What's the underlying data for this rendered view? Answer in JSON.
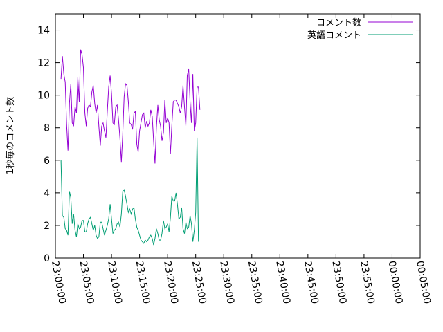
{
  "chart_data": {
    "type": "line",
    "ylabel": "1秒毎のコメント数",
    "ylim": [
      0,
      15
    ],
    "yticks": [
      0,
      2,
      4,
      6,
      8,
      10,
      12,
      14
    ],
    "xlim": [
      "23:00:00",
      "00:05:00"
    ],
    "xticks": [
      "23:00:00",
      "23:05:00",
      "23:10:00",
      "23:15:00",
      "23:20:00",
      "23:25:00",
      "23:30:00",
      "23:35:00",
      "23:40:00",
      "23:45:00",
      "23:50:00",
      "23:55:00",
      "00:00:00",
      "00:05:00"
    ],
    "legend_position": "top-right",
    "grid": false,
    "series": [
      {
        "name": "コメント数",
        "color": "#9400d3",
        "points": [
          [
            "23:01:00",
            11.0
          ],
          [
            "23:01:15",
            12.4
          ],
          [
            "23:01:30",
            11.3
          ],
          [
            "23:01:45",
            10.8
          ],
          [
            "23:02:00",
            8.2
          ],
          [
            "23:02:15",
            6.6
          ],
          [
            "23:02:30",
            9.5
          ],
          [
            "23:02:45",
            10.7
          ],
          [
            "23:03:00",
            8.3
          ],
          [
            "23:03:15",
            8.1
          ],
          [
            "23:03:30",
            9.3
          ],
          [
            "23:03:45",
            8.9
          ],
          [
            "23:04:00",
            11.1
          ],
          [
            "23:04:15",
            9.6
          ],
          [
            "23:04:30",
            12.8
          ],
          [
            "23:04:45",
            12.5
          ],
          [
            "23:05:00",
            11.7
          ],
          [
            "23:05:15",
            8.9
          ],
          [
            "23:05:30",
            8.1
          ],
          [
            "23:05:45",
            9.2
          ],
          [
            "23:06:00",
            9.4
          ],
          [
            "23:06:15",
            9.3
          ],
          [
            "23:06:30",
            10.2
          ],
          [
            "23:06:45",
            10.6
          ],
          [
            "23:07:00",
            9.5
          ],
          [
            "23:07:15",
            8.9
          ],
          [
            "23:07:30",
            9.4
          ],
          [
            "23:07:45",
            8.1
          ],
          [
            "23:08:00",
            6.9
          ],
          [
            "23:08:15",
            8.1
          ],
          [
            "23:08:30",
            8.3
          ],
          [
            "23:08:45",
            7.8
          ],
          [
            "23:09:00",
            7.4
          ],
          [
            "23:09:15",
            9.0
          ],
          [
            "23:09:30",
            10.5
          ],
          [
            "23:09:45",
            11.2
          ],
          [
            "23:10:00",
            10.1
          ],
          [
            "23:10:15",
            8.3
          ],
          [
            "23:10:30",
            8.2
          ],
          [
            "23:10:45",
            9.3
          ],
          [
            "23:11:00",
            9.4
          ],
          [
            "23:11:15",
            8.5
          ],
          [
            "23:11:30",
            7.4
          ],
          [
            "23:11:45",
            5.9
          ],
          [
            "23:12:00",
            7.6
          ],
          [
            "23:12:15",
            9.9
          ],
          [
            "23:12:30",
            10.7
          ],
          [
            "23:12:45",
            10.6
          ],
          [
            "23:13:00",
            9.6
          ],
          [
            "23:13:15",
            8.3
          ],
          [
            "23:13:30",
            8.2
          ],
          [
            "23:13:45",
            7.9
          ],
          [
            "23:14:00",
            8.9
          ],
          [
            "23:14:15",
            9.0
          ],
          [
            "23:14:30",
            7.0
          ],
          [
            "23:14:45",
            6.5
          ],
          [
            "23:15:00",
            7.8
          ],
          [
            "23:15:15",
            8.3
          ],
          [
            "23:15:30",
            8.8
          ],
          [
            "23:15:45",
            8.9
          ],
          [
            "23:16:00",
            8.0
          ],
          [
            "23:16:15",
            8.4
          ],
          [
            "23:16:30",
            8.1
          ],
          [
            "23:16:45",
            8.3
          ],
          [
            "23:17:00",
            9.1
          ],
          [
            "23:17:15",
            8.7
          ],
          [
            "23:17:30",
            7.2
          ],
          [
            "23:17:45",
            5.8
          ],
          [
            "23:18:00",
            8.0
          ],
          [
            "23:18:15",
            9.4
          ],
          [
            "23:18:30",
            8.5
          ],
          [
            "23:18:45",
            8.1
          ],
          [
            "23:19:00",
            7.2
          ],
          [
            "23:19:15",
            7.7
          ],
          [
            "23:19:30",
            9.7
          ],
          [
            "23:19:45",
            8.3
          ],
          [
            "23:20:00",
            8.6
          ],
          [
            "23:20:15",
            8.3
          ],
          [
            "23:20:30",
            6.4
          ],
          [
            "23:20:45",
            8.1
          ],
          [
            "23:21:00",
            9.6
          ],
          [
            "23:21:15",
            9.7
          ],
          [
            "23:21:30",
            9.7
          ],
          [
            "23:21:45",
            9.5
          ],
          [
            "23:22:00",
            9.3
          ],
          [
            "23:22:15",
            8.9
          ],
          [
            "23:22:30",
            9.3
          ],
          [
            "23:22:45",
            10.6
          ],
          [
            "23:23:00",
            9.3
          ],
          [
            "23:23:15",
            8.1
          ],
          [
            "23:23:30",
            11.2
          ],
          [
            "23:23:45",
            11.6
          ],
          [
            "23:24:00",
            9.6
          ],
          [
            "23:24:15",
            8.3
          ],
          [
            "23:24:30",
            11.3
          ],
          [
            "23:24:45",
            7.8
          ],
          [
            "23:25:00",
            8.3
          ],
          [
            "23:25:15",
            10.5
          ],
          [
            "23:25:30",
            10.5
          ],
          [
            "23:25:45",
            9.1
          ]
        ]
      },
      {
        "name": "英語コメント",
        "color": "#009e73",
        "points": [
          [
            "23:01:00",
            6.0
          ],
          [
            "23:01:15",
            2.6
          ],
          [
            "23:01:30",
            2.5
          ],
          [
            "23:01:45",
            1.8
          ],
          [
            "23:02:00",
            1.7
          ],
          [
            "23:02:15",
            1.4
          ],
          [
            "23:02:30",
            4.1
          ],
          [
            "23:02:45",
            3.7
          ],
          [
            "23:03:00",
            2.1
          ],
          [
            "23:03:15",
            2.7
          ],
          [
            "23:03:30",
            1.7
          ],
          [
            "23:03:45",
            1.3
          ],
          [
            "23:04:00",
            2.1
          ],
          [
            "23:04:15",
            1.8
          ],
          [
            "23:04:30",
            1.9
          ],
          [
            "23:04:45",
            2.3
          ],
          [
            "23:05:00",
            2.3
          ],
          [
            "23:05:15",
            1.6
          ],
          [
            "23:05:30",
            1.6
          ],
          [
            "23:05:45",
            2.1
          ],
          [
            "23:06:00",
            2.4
          ],
          [
            "23:06:15",
            2.5
          ],
          [
            "23:06:30",
            2.1
          ],
          [
            "23:06:45",
            1.7
          ],
          [
            "23:07:00",
            2.0
          ],
          [
            "23:07:15",
            1.4
          ],
          [
            "23:07:30",
            1.2
          ],
          [
            "23:07:45",
            1.3
          ],
          [
            "23:08:00",
            2.2
          ],
          [
            "23:08:15",
            2.2
          ],
          [
            "23:08:30",
            1.8
          ],
          [
            "23:08:45",
            1.4
          ],
          [
            "23:09:00",
            1.7
          ],
          [
            "23:09:15",
            2.0
          ],
          [
            "23:09:30",
            2.4
          ],
          [
            "23:09:45",
            3.3
          ],
          [
            "23:10:00",
            2.4
          ],
          [
            "23:10:15",
            1.5
          ],
          [
            "23:10:30",
            1.7
          ],
          [
            "23:10:45",
            1.8
          ],
          [
            "23:11:00",
            2.1
          ],
          [
            "23:11:15",
            2.2
          ],
          [
            "23:11:30",
            1.9
          ],
          [
            "23:11:45",
            2.7
          ],
          [
            "23:12:00",
            4.1
          ],
          [
            "23:12:15",
            4.2
          ],
          [
            "23:12:30",
            3.8
          ],
          [
            "23:12:45",
            3.3
          ],
          [
            "23:13:00",
            2.8
          ],
          [
            "23:13:15",
            3.0
          ],
          [
            "23:13:30",
            2.7
          ],
          [
            "23:13:45",
            3.0
          ],
          [
            "23:14:00",
            3.1
          ],
          [
            "23:14:15",
            2.4
          ],
          [
            "23:14:30",
            1.9
          ],
          [
            "23:14:45",
            1.7
          ],
          [
            "23:15:00",
            1.4
          ],
          [
            "23:15:15",
            1.1
          ],
          [
            "23:15:30",
            1.0
          ],
          [
            "23:15:45",
            0.9
          ],
          [
            "23:16:00",
            1.1
          ],
          [
            "23:16:15",
            1.0
          ],
          [
            "23:16:30",
            1.1
          ],
          [
            "23:16:45",
            1.3
          ],
          [
            "23:17:00",
            1.4
          ],
          [
            "23:17:15",
            1.2
          ],
          [
            "23:17:30",
            0.8
          ],
          [
            "23:17:45",
            1.2
          ],
          [
            "23:18:00",
            1.8
          ],
          [
            "23:18:15",
            1.5
          ],
          [
            "23:18:30",
            1.1
          ],
          [
            "23:18:45",
            1.1
          ],
          [
            "23:19:00",
            1.5
          ],
          [
            "23:19:15",
            2.3
          ],
          [
            "23:19:30",
            1.8
          ],
          [
            "23:19:45",
            1.9
          ],
          [
            "23:20:00",
            2.1
          ],
          [
            "23:20:15",
            1.6
          ],
          [
            "23:20:30",
            2.5
          ],
          [
            "23:20:45",
            3.8
          ],
          [
            "23:21:00",
            3.5
          ],
          [
            "23:21:15",
            3.5
          ],
          [
            "23:21:30",
            4.0
          ],
          [
            "23:21:45",
            3.3
          ],
          [
            "23:22:00",
            2.4
          ],
          [
            "23:22:15",
            2.5
          ],
          [
            "23:22:30",
            3.1
          ],
          [
            "23:22:45",
            1.8
          ],
          [
            "23:23:00",
            1.5
          ],
          [
            "23:23:15",
            2.2
          ],
          [
            "23:23:30",
            1.8
          ],
          [
            "23:23:45",
            1.9
          ],
          [
            "23:24:00",
            2.6
          ],
          [
            "23:24:15",
            2.1
          ],
          [
            "23:24:30",
            1.0
          ],
          [
            "23:24:45",
            1.7
          ],
          [
            "23:25:00",
            2.8
          ],
          [
            "23:25:15",
            7.4
          ],
          [
            "23:25:30",
            1.0
          ]
        ]
      }
    ]
  }
}
